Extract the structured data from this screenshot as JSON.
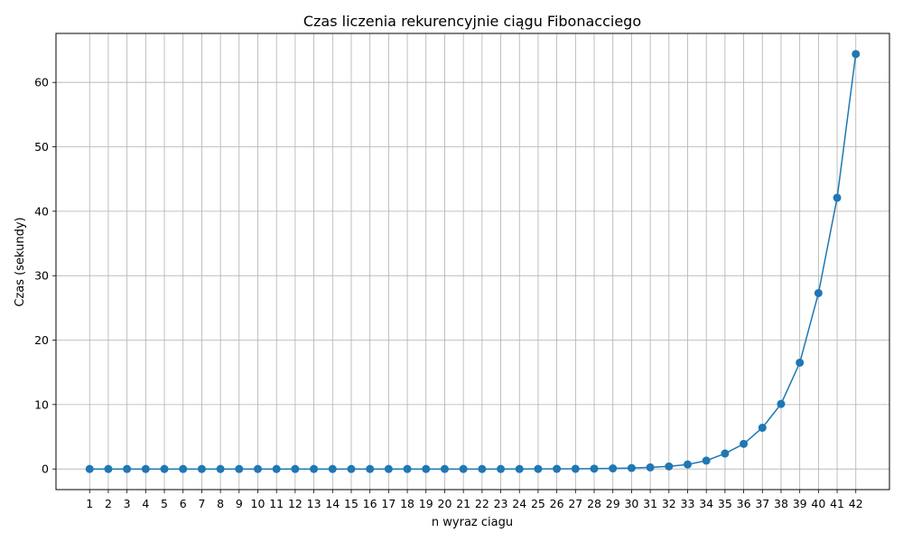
{
  "chart_data": {
    "type": "line",
    "title": "Czas liczenia rekurencyjnie ciągu Fibonacciego",
    "xlabel": "n wyraz ciagu",
    "ylabel": "Czas (sekundy)",
    "x": [
      1,
      2,
      3,
      4,
      5,
      6,
      7,
      8,
      9,
      10,
      11,
      12,
      13,
      14,
      15,
      16,
      17,
      18,
      19,
      20,
      21,
      22,
      23,
      24,
      25,
      26,
      27,
      28,
      29,
      30,
      31,
      32,
      33,
      34,
      35,
      36,
      37,
      38,
      39,
      40,
      41,
      42
    ],
    "y": [
      0,
      0,
      0,
      0,
      0,
      0,
      0,
      0,
      0,
      0,
      0,
      0,
      0,
      0,
      0,
      0,
      0,
      0,
      0,
      0,
      0,
      0,
      0,
      0.005,
      0.01,
      0.02,
      0.03,
      0.05,
      0.09,
      0.15,
      0.25,
      0.4,
      0.7,
      1.3,
      2.4,
      3.9,
      6.4,
      10.1,
      16.5,
      27.3,
      42.1,
      64.4
    ],
    "xlim": [
      -0.8,
      43.8
    ],
    "ylim": [
      -3.2,
      67.6
    ],
    "yticks": [
      0,
      10,
      20,
      30,
      40,
      50,
      60
    ],
    "grid": true,
    "color": "#1f77b4"
  }
}
